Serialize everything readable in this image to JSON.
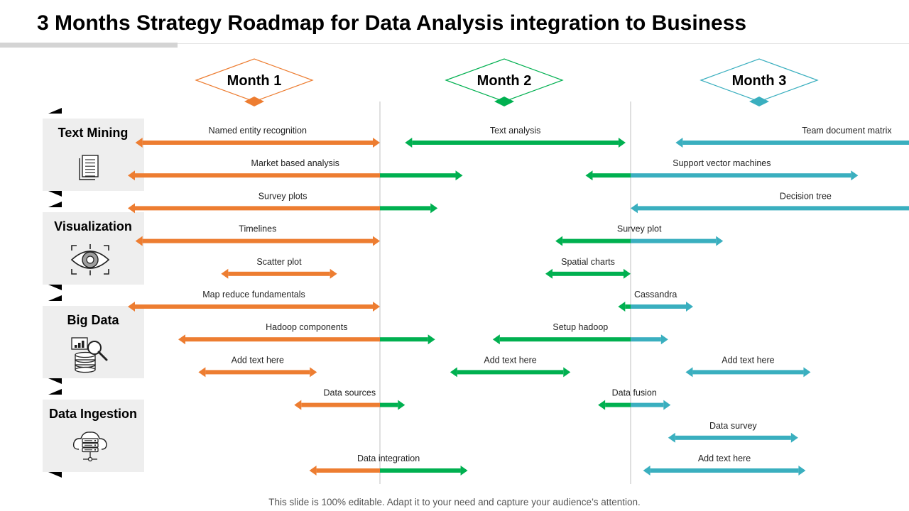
{
  "title": "3 Months Strategy Roadmap for Data Analysis integration to Business",
  "footer": "This slide is 100% editable. Adapt it to your need and capture your audience’s attention.",
  "colors": {
    "month1": "#ED7D31",
    "month2": "#00B050",
    "month3": "#3AAFBF",
    "panel": "#EEEEEE",
    "divider": "#BFBFBF"
  },
  "months": [
    {
      "label": "Month 1",
      "color": "#ED7D31"
    },
    {
      "label": "Month 2",
      "color": "#00B050"
    },
    {
      "label": "Month 3",
      "color": "#3AAFBF"
    }
  ],
  "categories": [
    {
      "label": "Text Mining",
      "icon": "document-icon"
    },
    {
      "label": "Visualization",
      "icon": "eye-target-icon"
    },
    {
      "label": "Big Data",
      "icon": "database-search-icon"
    },
    {
      "label": "Data Ingestion",
      "icon": "cloud-server-icon"
    }
  ],
  "tasks": [
    {
      "label": "Named entity recognition",
      "start": 0.03,
      "end": 1.0
    },
    {
      "label": "Text analysis",
      "start": 1.1,
      "end": 1.98
    },
    {
      "label": "Team document matrix",
      "start": 2.18,
      "end": 3.55
    },
    {
      "label": "Market based analysis",
      "start": 0.0,
      "end": 1.33
    },
    {
      "label": "Support vector machines",
      "start": 1.82,
      "end": 2.91
    },
    {
      "label": "Survey plots",
      "start": 0.0,
      "end": 1.23
    },
    {
      "label": "Decision tree",
      "start": 2.0,
      "end": 3.4
    },
    {
      "label": "Timelines",
      "start": 0.03,
      "end": 1.0
    },
    {
      "label": "Survey plot",
      "start": 1.7,
      "end": 2.37
    },
    {
      "label": "Scatter plot",
      "start": 0.37,
      "end": 0.83
    },
    {
      "label": "Spatial charts",
      "start": 1.66,
      "end": 2.0
    },
    {
      "label": "Map reduce fundamentals",
      "start": 0.0,
      "end": 1.0
    },
    {
      "label": "Cassandra",
      "start": 1.95,
      "end": 2.25
    },
    {
      "label": "Hadoop components",
      "start": 0.2,
      "end": 1.22
    },
    {
      "label": "Setup hadoop",
      "start": 1.45,
      "end": 2.15
    },
    {
      "label": "Add text here",
      "start": 0.28,
      "end": 0.75
    },
    {
      "label": "Add text here",
      "start": 1.28,
      "end": 1.76
    },
    {
      "label": "Add text here",
      "start": 2.22,
      "end": 2.72
    },
    {
      "label": "Data sources",
      "start": 0.66,
      "end": 1.1
    },
    {
      "label": "Data fusion",
      "start": 1.87,
      "end": 2.16
    },
    {
      "label": "Data survey",
      "start": 2.15,
      "end": 2.67
    },
    {
      "label": "Data integration",
      "start": 0.72,
      "end": 1.35
    },
    {
      "label": "Add text here",
      "start": 2.05,
      "end": 2.7
    }
  ]
}
